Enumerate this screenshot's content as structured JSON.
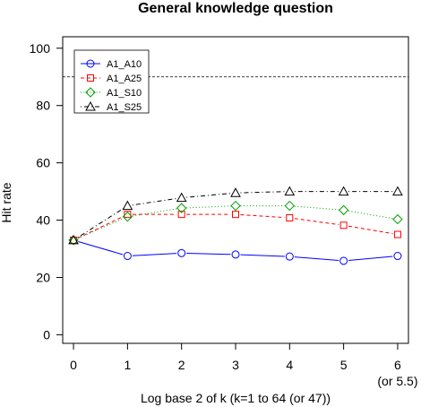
{
  "chart_data": {
    "type": "line",
    "title": "General knowledge question",
    "xlabel": "Log base 2 of k (k=1 to 64 (or 47))",
    "ylabel": "Hit rate",
    "x": [
      0,
      1,
      2,
      3,
      4,
      5,
      6
    ],
    "x_tick_labels": [
      "0",
      "1",
      "2",
      "3",
      "4",
      "5",
      "6"
    ],
    "x_tick_sublabel": "(or 5.5)",
    "y_ticks": [
      0,
      20,
      40,
      60,
      80,
      100
    ],
    "xlim": [
      -0.2,
      6.2
    ],
    "ylim": [
      -3,
      104
    ],
    "reference_line": 90,
    "legend_position": "top-left",
    "grid": false,
    "series": [
      {
        "name": "A1_A10",
        "color": "#0000ff",
        "marker": "circle",
        "line": "solid",
        "values": [
          33.0,
          27.5,
          28.5,
          28.0,
          27.3,
          25.8,
          27.5
        ]
      },
      {
        "name": "A1_A25",
        "color": "#ff0000",
        "marker": "square",
        "line": "dashed",
        "values": [
          33.0,
          42.0,
          42.0,
          42.0,
          40.8,
          38.2,
          35.0
        ]
      },
      {
        "name": "A1_S10",
        "color": "#00a000",
        "marker": "diamond",
        "line": "dotted",
        "values": [
          33.0,
          41.2,
          44.2,
          45.0,
          45.0,
          43.5,
          40.3
        ]
      },
      {
        "name": "A1_S25",
        "color": "#000000",
        "marker": "triangle",
        "line": "dotdash",
        "values": [
          33.0,
          45.0,
          47.8,
          49.5,
          50.0,
          50.0,
          50.0
        ]
      }
    ]
  }
}
